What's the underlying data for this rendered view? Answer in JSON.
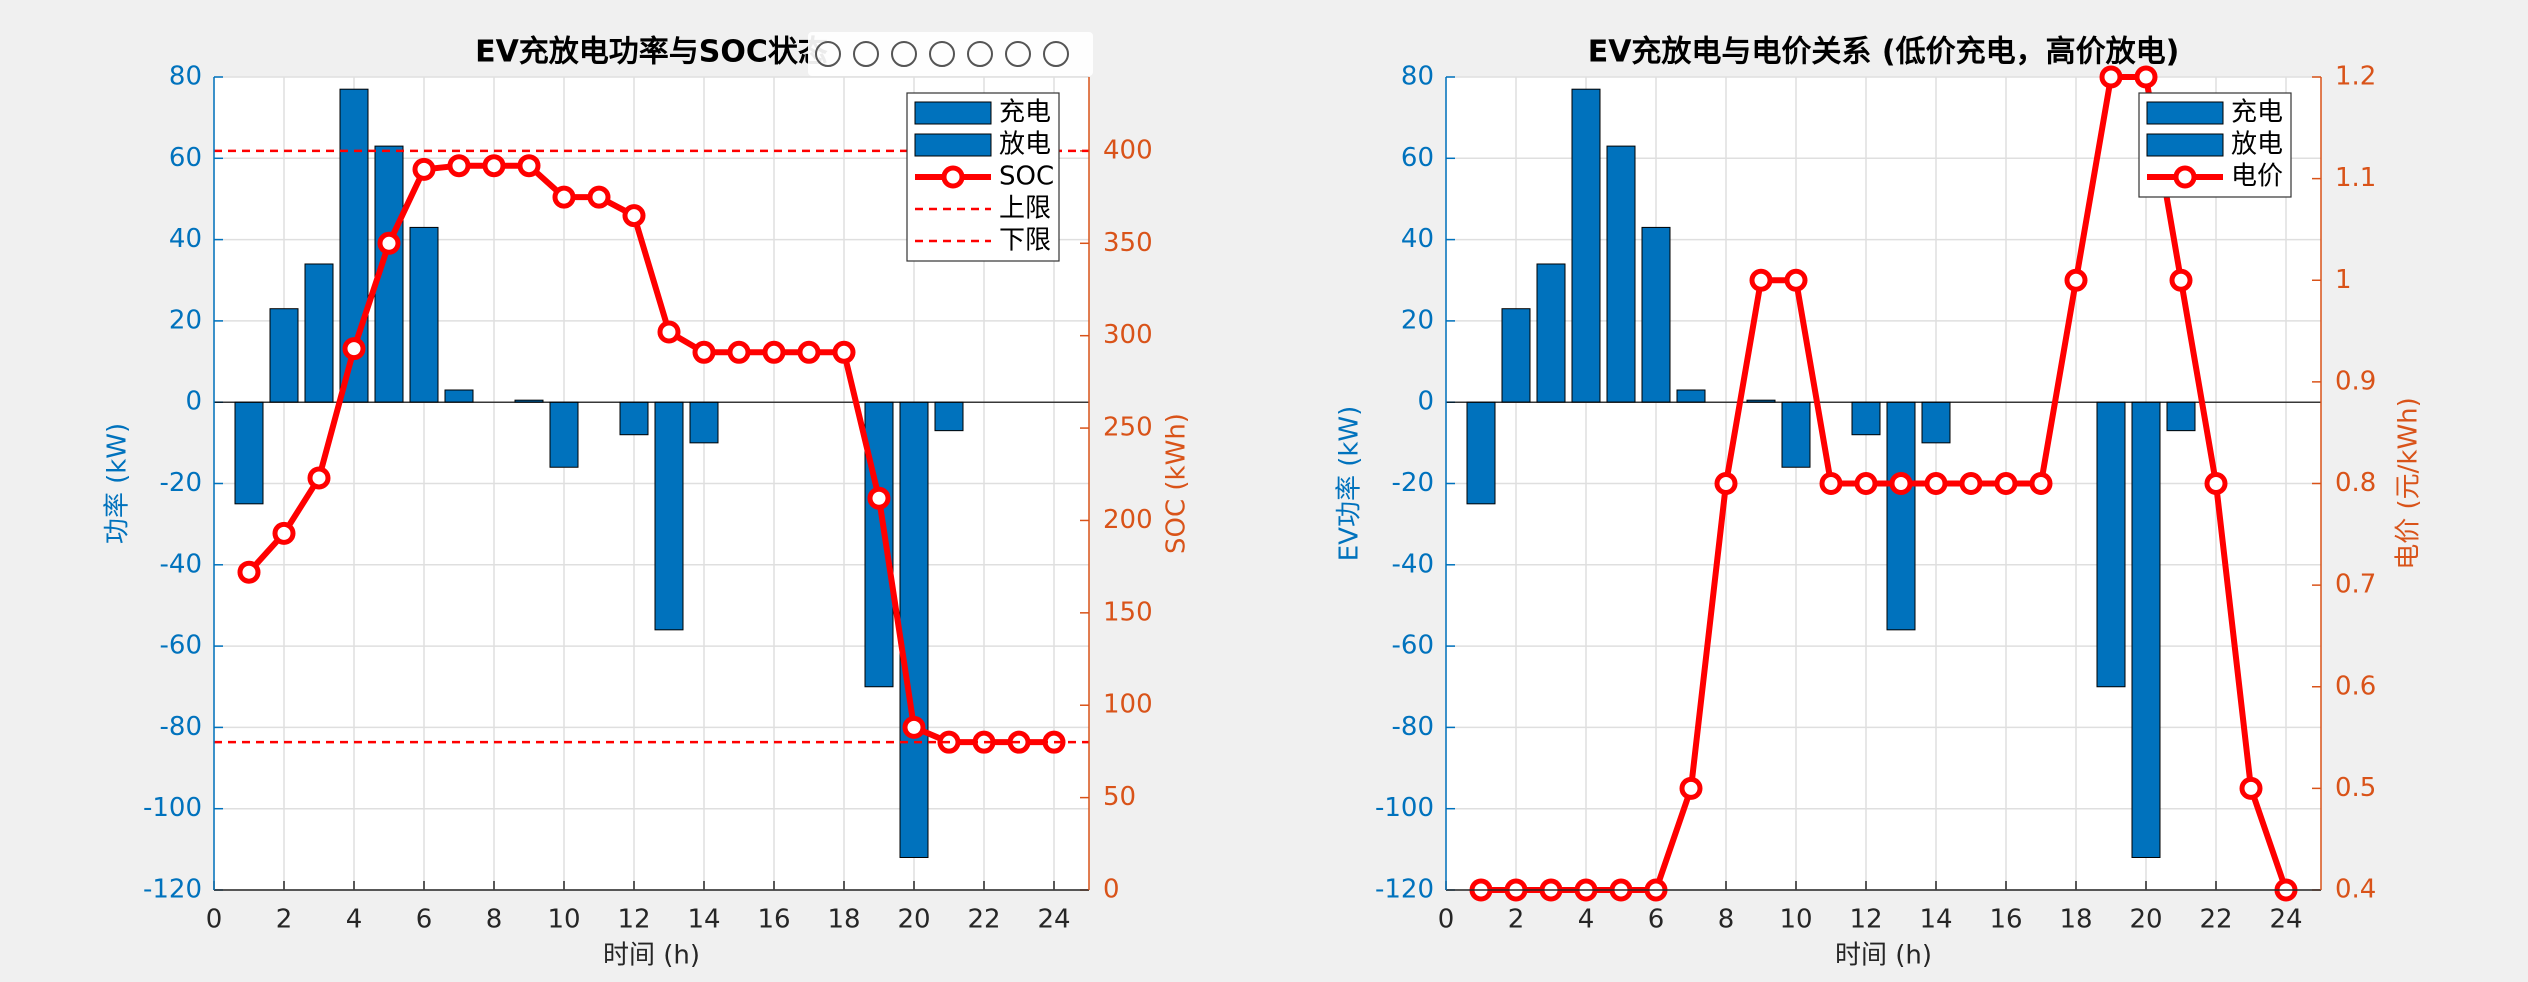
{
  "chart_data": [
    {
      "type": "bar",
      "title": "EV充放电功率与SOC状态",
      "xlabel": "时间 (h)",
      "ylabel": "功率 (kW)",
      "y2label": "SOC (kWh)",
      "x": [
        1,
        2,
        3,
        4,
        5,
        6,
        7,
        8,
        9,
        10,
        11,
        12,
        13,
        14,
        15,
        16,
        17,
        18,
        19,
        20,
        21,
        22,
        23,
        24
      ],
      "xlim": [
        0,
        25
      ],
      "xticks": [
        0,
        2,
        4,
        6,
        8,
        10,
        12,
        14,
        16,
        18,
        20,
        22,
        24
      ],
      "ylim": [
        -120,
        80
      ],
      "yticks": [
        -120,
        -100,
        -80,
        -60,
        -40,
        -20,
        0,
        20,
        40,
        60,
        80
      ],
      "y2lim": [
        0,
        440
      ],
      "y2ticks": [
        0,
        50,
        100,
        150,
        200,
        250,
        300,
        350,
        400
      ],
      "grid": true,
      "legend": "northeast",
      "series": [
        {
          "name": "充电",
          "kind": "bar",
          "color": "#0072bd",
          "values": [
            0,
            23,
            34,
            77,
            63,
            43,
            3,
            0,
            0.5,
            0,
            0,
            0,
            0,
            0,
            0,
            0,
            0,
            0,
            0,
            0,
            0,
            0,
            0,
            0
          ]
        },
        {
          "name": "放电",
          "kind": "bar",
          "color": "#0072bd",
          "values": [
            -25,
            0,
            0,
            0,
            0,
            0,
            0,
            0,
            0,
            -16,
            0,
            -8,
            -56,
            -10,
            0,
            0,
            0,
            0,
            -70,
            -112,
            -7,
            0,
            0,
            0
          ]
        },
        {
          "name": "SOC",
          "kind": "line",
          "axis": "y2",
          "color": "#ff0000",
          "values": [
            172,
            193,
            223,
            293,
            350,
            390,
            392,
            392,
            392,
            375,
            375,
            365,
            302,
            291,
            291,
            291,
            291,
            291,
            212,
            88,
            80,
            80,
            80,
            80
          ]
        },
        {
          "name": "上限",
          "kind": "hline",
          "axis": "y2",
          "color": "#ff0000",
          "value": 400
        },
        {
          "name": "下限",
          "kind": "hline",
          "axis": "y2",
          "color": "#ff0000",
          "value": 80
        }
      ]
    },
    {
      "type": "bar",
      "title": "EV充放电与电价关系 (低价充电，高价放电)",
      "xlabel": "时间 (h)",
      "ylabel": "EV功率 (kW)",
      "y2label": "电价 (元/kWh)",
      "x": [
        1,
        2,
        3,
        4,
        5,
        6,
        7,
        8,
        9,
        10,
        11,
        12,
        13,
        14,
        15,
        16,
        17,
        18,
        19,
        20,
        21,
        22,
        23,
        24
      ],
      "xlim": [
        0,
        25
      ],
      "xticks": [
        0,
        2,
        4,
        6,
        8,
        10,
        12,
        14,
        16,
        18,
        20,
        22,
        24
      ],
      "ylim": [
        -120,
        80
      ],
      "yticks": [
        -120,
        -100,
        -80,
        -60,
        -40,
        -20,
        0,
        20,
        40,
        60,
        80
      ],
      "y2lim": [
        0.4,
        1.2
      ],
      "y2ticks": [
        0.4,
        0.5,
        0.6,
        0.7,
        0.8,
        0.9,
        1,
        1.1,
        1.2
      ],
      "grid": true,
      "legend": "northeast",
      "series": [
        {
          "name": "充电",
          "kind": "bar",
          "color": "#0072bd",
          "values": [
            0,
            23,
            34,
            77,
            63,
            43,
            3,
            0,
            0.5,
            0,
            0,
            0,
            0,
            0,
            0,
            0,
            0,
            0,
            0,
            0,
            0,
            0,
            0,
            0
          ]
        },
        {
          "name": "放电",
          "kind": "bar",
          "color": "#0072bd",
          "values": [
            -25,
            0,
            0,
            0,
            0,
            0,
            0,
            0,
            0,
            -16,
            0,
            -8,
            -56,
            -10,
            0,
            0,
            0,
            0,
            -70,
            -112,
            -7,
            0,
            0,
            0
          ]
        },
        {
          "name": "电价",
          "kind": "line",
          "axis": "y2",
          "color": "#ff0000",
          "values": [
            0.4,
            0.4,
            0.4,
            0.4,
            0.4,
            0.4,
            0.5,
            0.8,
            1,
            1,
            0.8,
            0.8,
            0.8,
            0.8,
            0.8,
            0.8,
            0.8,
            1,
            1.2,
            1.2,
            1,
            0.8,
            0.5,
            0.4
          ]
        }
      ]
    }
  ]
}
